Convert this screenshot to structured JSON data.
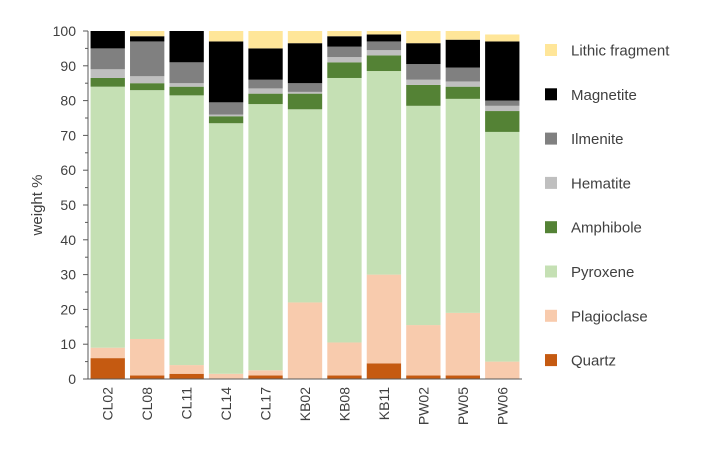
{
  "chart_data": {
    "type": "bar",
    "stacked": true,
    "title": "",
    "xlabel": "",
    "ylabel": "weight %",
    "ylim": [
      0,
      100
    ],
    "yticks": [
      0,
      10,
      20,
      30,
      40,
      50,
      60,
      70,
      80,
      90,
      100
    ],
    "grid": false,
    "legend_position": "right",
    "categories": [
      "CL02",
      "CL08",
      "CL11",
      "CL14",
      "CL17",
      "KB02",
      "KB08",
      "KB11",
      "PW02",
      "PW05",
      "PW06"
    ],
    "series": [
      {
        "name": "Quartz",
        "color": "#C55A11",
        "values": [
          6.0,
          1.0,
          1.5,
          0.0,
          1.0,
          0.0,
          1.0,
          4.5,
          1.0,
          1.0,
          0.0
        ]
      },
      {
        "name": "Plagioclase",
        "color": "#F8CBAD",
        "values": [
          3.0,
          10.5,
          2.5,
          1.5,
          1.5,
          22.0,
          9.5,
          25.5,
          14.5,
          18.0,
          5.0
        ]
      },
      {
        "name": "Pyroxene",
        "color": "#C5E0B4",
        "values": [
          75.0,
          71.5,
          77.5,
          72.0,
          76.5,
          55.5,
          76.0,
          58.5,
          63.0,
          61.5,
          66.0
        ]
      },
      {
        "name": "Amphibole",
        "color": "#548235",
        "values": [
          2.5,
          2.0,
          2.5,
          2.0,
          3.0,
          4.5,
          4.5,
          4.5,
          6.0,
          3.5,
          6.0
        ]
      },
      {
        "name": "Hematite",
        "color": "#BFBFBF",
        "values": [
          2.5,
          2.0,
          1.0,
          0.5,
          1.5,
          0.5,
          1.5,
          1.5,
          1.5,
          1.5,
          1.5
        ]
      },
      {
        "name": "Ilmenite",
        "color": "#808080",
        "values": [
          6.0,
          10.0,
          6.0,
          3.5,
          2.5,
          2.5,
          3.0,
          2.5,
          4.5,
          4.0,
          1.5
        ]
      },
      {
        "name": "Magnetite",
        "color": "#000000",
        "values": [
          5.0,
          1.5,
          9.0,
          17.5,
          9.0,
          11.5,
          3.0,
          2.0,
          6.0,
          8.0,
          17.0
        ]
      },
      {
        "name": "Lithic fragment",
        "color": "#FFE699",
        "values": [
          0.0,
          1.5,
          0.0,
          3.0,
          5.0,
          3.5,
          1.5,
          1.0,
          3.5,
          2.5,
          2.0
        ]
      }
    ]
  }
}
